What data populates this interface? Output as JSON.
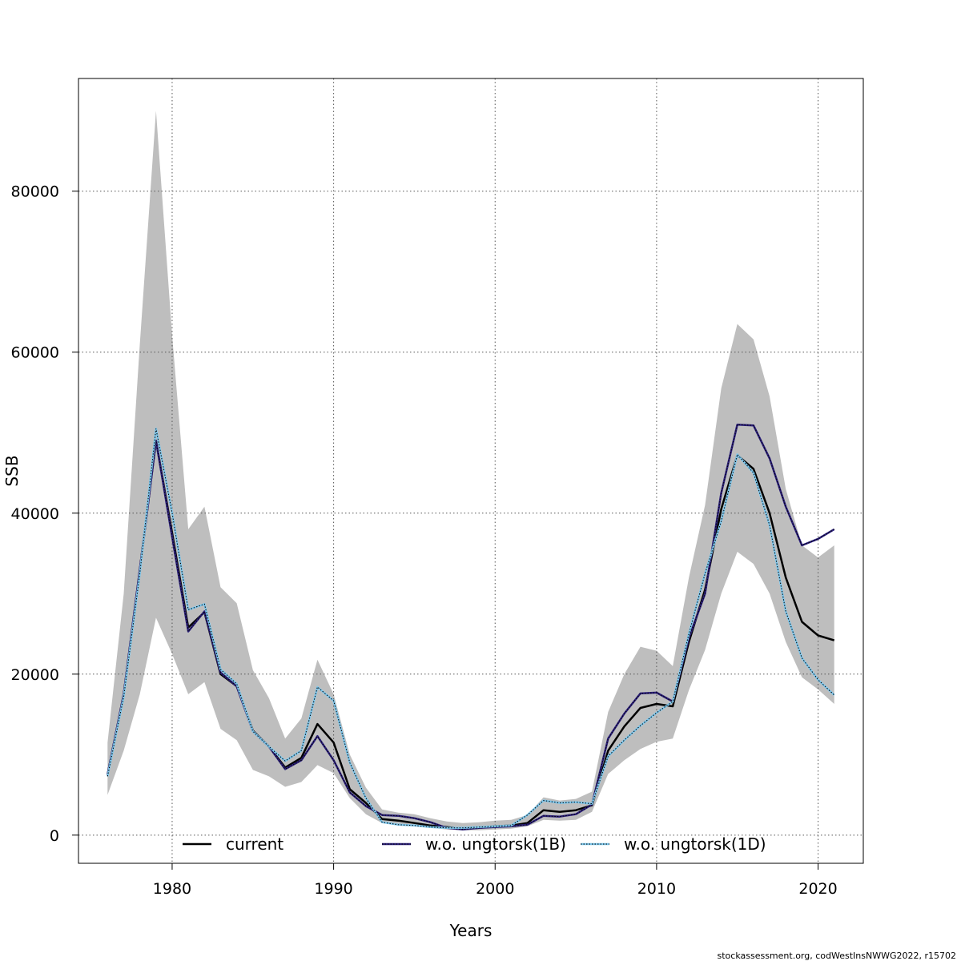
{
  "chart_data": {
    "type": "line",
    "xlabel": "Years",
    "ylabel": "SSB",
    "xlim": [
      1974.2,
      2022.8
    ],
    "ylim": [
      -3500,
      94000
    ],
    "x_ticks": [
      1980,
      1990,
      2000,
      2010,
      2020
    ],
    "y_ticks": [
      0,
      20000,
      40000,
      60000,
      80000
    ],
    "grid": true,
    "legend_position": "bottom",
    "x": [
      1976,
      1977,
      1978,
      1979,
      1980,
      1981,
      1982,
      1983,
      1984,
      1985,
      1986,
      1987,
      1988,
      1989,
      1990,
      1991,
      1992,
      1993,
      1994,
      1995,
      1996,
      1997,
      1998,
      1999,
      2000,
      2001,
      2002,
      2003,
      2004,
      2005,
      2006,
      2007,
      2008,
      2009,
      2010,
      2011,
      2012,
      2013,
      2014,
      2015,
      2016,
      2017,
      2018,
      2019,
      2020,
      2021
    ],
    "band": {
      "lower": [
        5000,
        10500,
        17500,
        27000,
        22500,
        17500,
        19000,
        13200,
        11800,
        8100,
        7300,
        6000,
        6600,
        8700,
        7700,
        4600,
        2600,
        1500,
        1300,
        1100,
        900,
        700,
        600,
        600,
        700,
        800,
        1100,
        1900,
        1800,
        1900,
        2900,
        7600,
        9300,
        10700,
        11600,
        12000,
        18000,
        23000,
        30000,
        35200,
        33700,
        30000,
        24000,
        19600,
        18100,
        16300
      ],
      "upper": [
        11500,
        30000,
        61000,
        90000,
        62000,
        38000,
        40800,
        30800,
        28800,
        20500,
        17000,
        12000,
        14500,
        21800,
        17500,
        10000,
        5900,
        3200,
        2800,
        2600,
        2100,
        1700,
        1500,
        1600,
        1800,
        1900,
        2500,
        4700,
        4300,
        4500,
        5400,
        15300,
        20000,
        23400,
        22900,
        21000,
        32000,
        41000,
        55500,
        63500,
        61600,
        54500,
        43000,
        36000,
        34500,
        36000
      ]
    },
    "series": [
      {
        "name": "current",
        "color": "#000000",
        "style": "solid",
        "values": [
          7500,
          17500,
          33000,
          49000,
          37500,
          25800,
          27700,
          20000,
          18500,
          13000,
          11000,
          8400,
          9600,
          13800,
          11500,
          5700,
          4000,
          2000,
          1800,
          1500,
          1200,
          1000,
          800,
          900,
          1100,
          1200,
          1500,
          3100,
          2900,
          3100,
          3700,
          10500,
          13500,
          15800,
          16300,
          16000,
          24000,
          30500,
          40500,
          47200,
          45500,
          40000,
          32000,
          26500,
          24800,
          24200
        ]
      },
      {
        "name": "w.o. ungtorsk(1B)",
        "color": "#2b1f7a",
        "style": "solid",
        "values": [
          7500,
          17500,
          33000,
          49000,
          37000,
          25300,
          27800,
          20200,
          18500,
          12900,
          11000,
          8200,
          9300,
          12300,
          9300,
          5300,
          3600,
          2500,
          2400,
          2100,
          1600,
          900,
          700,
          900,
          1000,
          1100,
          1300,
          2400,
          2300,
          2600,
          3800,
          12000,
          15100,
          17600,
          17700,
          16600,
          24500,
          30000,
          42500,
          51000,
          50900,
          46800,
          40800,
          36000,
          36800,
          38000
        ]
      },
      {
        "name": "w.o. ungtorsk(1D)",
        "color": "#7ec8ee",
        "style": "dotted",
        "values": [
          7300,
          17200,
          32500,
          50500,
          40000,
          28000,
          28700,
          20600,
          18800,
          12900,
          11000,
          9200,
          10500,
          18400,
          16700,
          9000,
          4600,
          1600,
          1300,
          1200,
          1000,
          900,
          900,
          1000,
          1100,
          1200,
          2500,
          4300,
          4000,
          4100,
          3900,
          9800,
          11800,
          13600,
          15200,
          16600,
          25000,
          32500,
          39000,
          47300,
          45000,
          38500,
          27800,
          22000,
          19300,
          17400
        ]
      }
    ]
  },
  "footer": "stockassessment.org, codWestInsNWWG2022, r15702"
}
